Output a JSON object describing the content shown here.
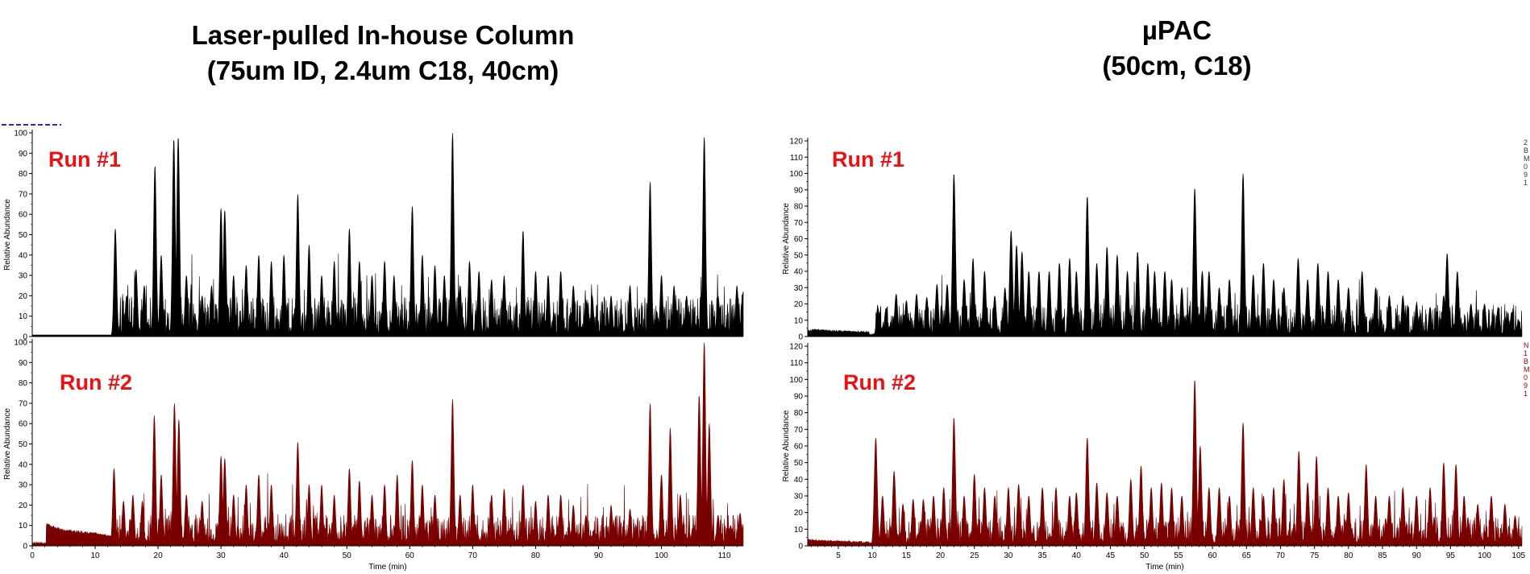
{
  "titles": {
    "left": {
      "line1": "Laser-pulled In-house Column",
      "line2": "(75um ID, 2.4um C18, 40cm)"
    },
    "right": {
      "line1": "µPAC",
      "line2": "(50cm, C18)"
    }
  },
  "colors": {
    "run1": "#000000",
    "run2": "#7a0000",
    "run_label": "#ee1111",
    "side_dark": "#333333",
    "side_red": "#aa0000",
    "top_clip": "#2233aa"
  },
  "side_labels": {
    "right_top": [
      "2",
      "B",
      "M",
      "0",
      "9",
      "1"
    ],
    "right_bottom": [
      "N",
      "1",
      "B",
      "M",
      "0",
      "9",
      "1"
    ]
  },
  "chart_data": [
    {
      "type": "line",
      "panel": "left-run1",
      "annotation": "Run #1",
      "ylabel": "Relative Abundance",
      "xlabel": "",
      "ylim": [
        0,
        100
      ],
      "xlim": [
        0,
        113
      ],
      "yticks": [
        0,
        10,
        20,
        30,
        40,
        50,
        60,
        70,
        80,
        90,
        100
      ],
      "xticks": [],
      "grid": false,
      "onset": 13,
      "baseline": 2,
      "noise": 8,
      "peaks": [
        [
          13.2,
          53
        ],
        [
          15.0,
          20
        ],
        [
          16.5,
          33
        ],
        [
          17.8,
          25
        ],
        [
          19.5,
          84
        ],
        [
          20.5,
          40
        ],
        [
          22.5,
          97
        ],
        [
          23.2,
          98
        ],
        [
          24.5,
          30
        ],
        [
          27.0,
          20
        ],
        [
          28.5,
          25
        ],
        [
          30.0,
          63
        ],
        [
          30.6,
          62
        ],
        [
          32.0,
          30
        ],
        [
          34.0,
          35
        ],
        [
          36.0,
          40
        ],
        [
          38.0,
          37
        ],
        [
          40.0,
          40
        ],
        [
          42.2,
          70
        ],
        [
          44.0,
          45
        ],
        [
          46.0,
          30
        ],
        [
          48.0,
          37
        ],
        [
          50.4,
          53
        ],
        [
          52.0,
          37
        ],
        [
          54.0,
          30
        ],
        [
          56.0,
          37
        ],
        [
          57.5,
          30
        ],
        [
          60.4,
          64
        ],
        [
          62.0,
          40
        ],
        [
          64.0,
          35
        ],
        [
          65.5,
          30
        ],
        [
          66.8,
          100
        ],
        [
          68.0,
          25
        ],
        [
          69.5,
          37
        ],
        [
          71.0,
          32
        ],
        [
          73.0,
          28
        ],
        [
          75.0,
          30
        ],
        [
          78.0,
          52
        ],
        [
          80.0,
          32
        ],
        [
          82.0,
          30
        ],
        [
          84.0,
          32
        ],
        [
          86.0,
          25
        ],
        [
          88.0,
          18
        ],
        [
          89.0,
          20
        ],
        [
          92.0,
          20
        ],
        [
          95.0,
          25
        ],
        [
          98.2,
          76
        ],
        [
          100.0,
          30
        ],
        [
          102.0,
          25
        ],
        [
          104.0,
          20
        ],
        [
          106.8,
          98
        ],
        [
          109.0,
          20
        ],
        [
          112.0,
          25
        ],
        [
          113.0,
          22
        ]
      ]
    },
    {
      "type": "line",
      "panel": "left-run2",
      "annotation": "Run #2",
      "ylabel": "Relative Abundance",
      "xlabel": "Time (min)",
      "ylim": [
        0,
        100
      ],
      "xlim": [
        0,
        113
      ],
      "yticks": [
        0,
        10,
        20,
        30,
        40,
        50,
        60,
        70,
        80,
        90,
        100
      ],
      "xticks": [
        0,
        10,
        20,
        30,
        40,
        50,
        60,
        70,
        80,
        90,
        100,
        110
      ],
      "grid": false,
      "onset": 13,
      "baseline": 2,
      "noise": 6,
      "prehump": [
        [
          2.2,
          10
        ],
        [
          3.0,
          9
        ],
        [
          5.0,
          7
        ],
        [
          8.0,
          6
        ],
        [
          10.0,
          5.5
        ],
        [
          12.5,
          4
        ]
      ],
      "peaks": [
        [
          13.0,
          38
        ],
        [
          14.5,
          22
        ],
        [
          16.0,
          25
        ],
        [
          17.5,
          22
        ],
        [
          19.4,
          64
        ],
        [
          20.5,
          35
        ],
        [
          22.6,
          70
        ],
        [
          23.3,
          62
        ],
        [
          24.5,
          25
        ],
        [
          27.0,
          22
        ],
        [
          30.0,
          44
        ],
        [
          30.6,
          43
        ],
        [
          32.0,
          25
        ],
        [
          34.0,
          30
        ],
        [
          36.0,
          35
        ],
        [
          38.0,
          30
        ],
        [
          42.2,
          51
        ],
        [
          44.0,
          30
        ],
        [
          46.0,
          30
        ],
        [
          48.0,
          25
        ],
        [
          50.4,
          38
        ],
        [
          52.0,
          32
        ],
        [
          54.0,
          25
        ],
        [
          56.0,
          30
        ],
        [
          58.0,
          35
        ],
        [
          60.4,
          42
        ],
        [
          62.0,
          30
        ],
        [
          64.0,
          25
        ],
        [
          66.8,
          72
        ],
        [
          68.0,
          25
        ],
        [
          70.0,
          30
        ],
        [
          73.0,
          25
        ],
        [
          75.0,
          28
        ],
        [
          78.0,
          30
        ],
        [
          80.0,
          22
        ],
        [
          82.0,
          25
        ],
        [
          84.0,
          25
        ],
        [
          86.0,
          20
        ],
        [
          88.0,
          15
        ],
        [
          92.0,
          20
        ],
        [
          95.0,
          18
        ],
        [
          98.2,
          70
        ],
        [
          100.0,
          35
        ],
        [
          101.4,
          58
        ],
        [
          103.0,
          25
        ],
        [
          106.0,
          74
        ],
        [
          106.8,
          100
        ],
        [
          107.6,
          60
        ],
        [
          109.0,
          15
        ],
        [
          111.0,
          10
        ],
        [
          112.5,
          16
        ]
      ]
    },
    {
      "type": "line",
      "panel": "right-run1",
      "annotation": "Run #1",
      "ylabel": "Relative Abundance",
      "xlabel": "",
      "ylim": [
        0,
        120
      ],
      "xlim": [
        0.5,
        105.5
      ],
      "yticks": [
        0,
        10,
        20,
        30,
        40,
        50,
        60,
        70,
        80,
        90,
        100,
        110,
        120
      ],
      "xticks": [],
      "grid": false,
      "onset": 10.5,
      "baseline": 2,
      "noise": 8,
      "prehump": [
        [
          0.5,
          3
        ],
        [
          1.5,
          3.5
        ],
        [
          3.0,
          3
        ],
        [
          6.0,
          2.5
        ],
        [
          9.5,
          2
        ]
      ],
      "peaks": [
        [
          10.8,
          18
        ],
        [
          12.0,
          17
        ],
        [
          13.5,
          26
        ],
        [
          15.0,
          22
        ],
        [
          16.5,
          26
        ],
        [
          18.0,
          24
        ],
        [
          19.5,
          32
        ],
        [
          21.0,
          32
        ],
        [
          22.0,
          100
        ],
        [
          23.5,
          35
        ],
        [
          24.8,
          48
        ],
        [
          26.5,
          40
        ],
        [
          28.0,
          25
        ],
        [
          29.5,
          30
        ],
        [
          30.4,
          65
        ],
        [
          31.2,
          56
        ],
        [
          32.0,
          52
        ],
        [
          33.0,
          40
        ],
        [
          34.5,
          40
        ],
        [
          36.0,
          40
        ],
        [
          37.5,
          45
        ],
        [
          39.0,
          48
        ],
        [
          40.0,
          40
        ],
        [
          41.6,
          86
        ],
        [
          43.0,
          45
        ],
        [
          44.5,
          55
        ],
        [
          46.0,
          50
        ],
        [
          47.5,
          40
        ],
        [
          49.0,
          52
        ],
        [
          50.5,
          45
        ],
        [
          51.5,
          40
        ],
        [
          53.0,
          40
        ],
        [
          54.0,
          35
        ],
        [
          55.5,
          30
        ],
        [
          57.4,
          91
        ],
        [
          58.5,
          40
        ],
        [
          59.5,
          40
        ],
        [
          61.0,
          30
        ],
        [
          62.5,
          35
        ],
        [
          64.5,
          100
        ],
        [
          66.0,
          38
        ],
        [
          67.5,
          45
        ],
        [
          69.0,
          35
        ],
        [
          70.5,
          30
        ],
        [
          72.6,
          48
        ],
        [
          74.0,
          35
        ],
        [
          75.5,
          45
        ],
        [
          77.0,
          40
        ],
        [
          78.5,
          35
        ],
        [
          80.0,
          30
        ],
        [
          82.0,
          40
        ],
        [
          84.0,
          30
        ],
        [
          86.0,
          25
        ],
        [
          88.0,
          25
        ],
        [
          90.0,
          20
        ],
        [
          92.0,
          18
        ],
        [
          94.0,
          25
        ],
        [
          94.5,
          51
        ],
        [
          96.0,
          40
        ],
        [
          98.0,
          20
        ],
        [
          100.0,
          20
        ],
        [
          102.0,
          18
        ],
        [
          104.0,
          15
        ],
        [
          105.0,
          10
        ]
      ]
    },
    {
      "type": "line",
      "panel": "right-run2",
      "annotation": "Run #2",
      "ylabel": "Relative Abundance",
      "xlabel": "Time (min)",
      "ylim": [
        0,
        120
      ],
      "xlim": [
        0.5,
        105.5
      ],
      "yticks": [
        0,
        10,
        20,
        30,
        40,
        50,
        60,
        70,
        80,
        90,
        100,
        110,
        120
      ],
      "xticks": [
        5,
        10,
        15,
        20,
        25,
        30,
        35,
        40,
        45,
        50,
        55,
        60,
        65,
        70,
        75,
        80,
        85,
        90,
        95,
        100,
        105
      ],
      "grid": false,
      "onset": 10.3,
      "baseline": 2,
      "noise": 7,
      "prehump": [
        [
          0.5,
          3
        ],
        [
          2.0,
          2.5
        ],
        [
          5.0,
          2
        ],
        [
          9.5,
          1.5
        ]
      ],
      "peaks": [
        [
          10.5,
          65
        ],
        [
          11.5,
          30
        ],
        [
          13.2,
          45
        ],
        [
          14.5,
          25
        ],
        [
          16.0,
          28
        ],
        [
          17.5,
          28
        ],
        [
          19.0,
          30
        ],
        [
          20.5,
          35
        ],
        [
          22.0,
          77
        ],
        [
          23.5,
          30
        ],
        [
          25.0,
          43
        ],
        [
          26.5,
          35
        ],
        [
          28.0,
          30
        ],
        [
          30.0,
          35
        ],
        [
          31.5,
          37
        ],
        [
          33.0,
          30
        ],
        [
          35.0,
          35
        ],
        [
          37.0,
          35
        ],
        [
          39.0,
          30
        ],
        [
          40.0,
          32
        ],
        [
          41.6,
          65
        ],
        [
          43.0,
          38
        ],
        [
          44.5,
          32
        ],
        [
          46.0,
          30
        ],
        [
          48.0,
          40
        ],
        [
          49.5,
          48
        ],
        [
          51.0,
          35
        ],
        [
          52.5,
          38
        ],
        [
          54.0,
          35
        ],
        [
          55.5,
          30
        ],
        [
          57.4,
          100
        ],
        [
          58.2,
          60
        ],
        [
          59.5,
          35
        ],
        [
          61.0,
          35
        ],
        [
          62.5,
          30
        ],
        [
          64.5,
          74
        ],
        [
          66.0,
          35
        ],
        [
          67.5,
          30
        ],
        [
          69.0,
          35
        ],
        [
          70.5,
          40
        ],
        [
          72.7,
          57
        ],
        [
          74.0,
          38
        ],
        [
          75.3,
          54
        ],
        [
          77.0,
          35
        ],
        [
          78.5,
          30
        ],
        [
          80.0,
          32
        ],
        [
          82.6,
          49
        ],
        [
          84.0,
          30
        ],
        [
          86.0,
          30
        ],
        [
          88.0,
          35
        ],
        [
          90.0,
          30
        ],
        [
          92.0,
          35
        ],
        [
          94.0,
          50
        ],
        [
          95.8,
          49
        ],
        [
          97.0,
          30
        ],
        [
          99.0,
          25
        ],
        [
          101.0,
          30
        ],
        [
          103.0,
          25
        ],
        [
          104.5,
          18
        ]
      ]
    }
  ]
}
